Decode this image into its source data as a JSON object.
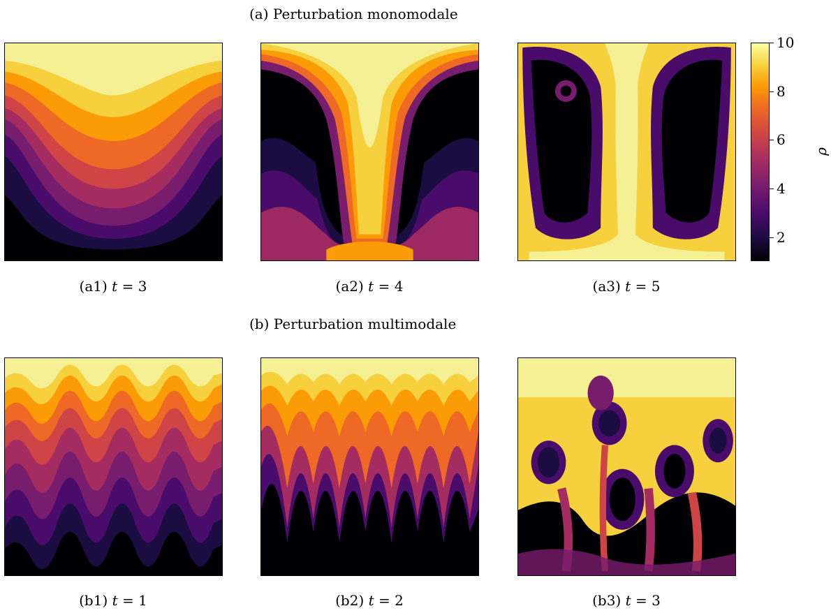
{
  "sections": {
    "a_title": "(a) Perturbation monomodale",
    "b_title": "(b) Perturbation multimodale"
  },
  "panels": [
    {
      "id": "a1",
      "prefix": "(a1)",
      "var": "t",
      "time": "3"
    },
    {
      "id": "a2",
      "prefix": "(a2)",
      "var": "t",
      "time": "4"
    },
    {
      "id": "a3",
      "prefix": "(a3)",
      "var": "t",
      "time": "5"
    },
    {
      "id": "b1",
      "prefix": "(b1)",
      "var": "t",
      "time": "1"
    },
    {
      "id": "b2",
      "prefix": "(b2)",
      "var": "t",
      "time": "2"
    },
    {
      "id": "b3",
      "prefix": "(b3)",
      "var": "t",
      "time": "3"
    }
  ],
  "colorbar": {
    "symbol": "ρ",
    "ticks": [
      "10",
      "8",
      "6",
      "4",
      "2"
    ],
    "range": [
      1,
      10
    ],
    "colormap": "inferno"
  }
}
